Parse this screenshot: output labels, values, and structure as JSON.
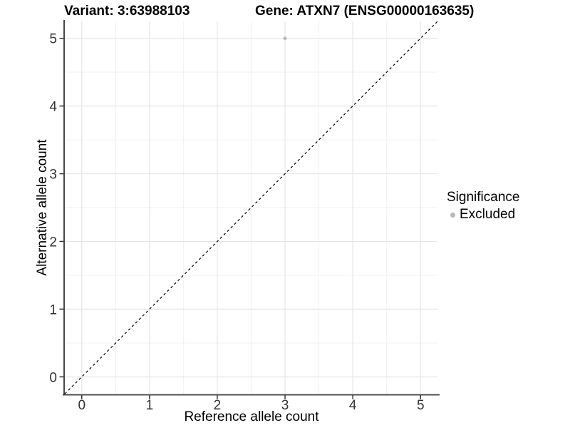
{
  "header": {
    "variant_title": "Variant: 3:63988103",
    "gene_title": "Gene: ATXN7 (ENSG00000163635)"
  },
  "chart_data": {
    "type": "scatter",
    "title": "Variant: 3:63988103 | Gene: ATXN7 (ENSG00000163635)",
    "xlabel": "Reference allele count",
    "ylabel": "Alternative allele count",
    "xlim": [
      -0.25,
      5.25
    ],
    "ylim": [
      -0.25,
      5.25
    ],
    "x_ticks": [
      0,
      1,
      2,
      3,
      4,
      5
    ],
    "y_ticks": [
      0,
      1,
      2,
      3,
      4,
      5
    ],
    "grid": "major+minor",
    "series": [
      {
        "name": "Excluded",
        "color": "#b8b8b8",
        "point_radius": 2.5,
        "points": [
          {
            "x": 3,
            "y": 5
          }
        ]
      }
    ],
    "reference_line": {
      "slope": 1,
      "intercept": 0,
      "linetype": "dashed",
      "color": "#000000"
    },
    "legend": {
      "title": "Significance",
      "position": "right",
      "items": [
        {
          "label": "Excluded",
          "color": "#b8b8b8"
        }
      ]
    },
    "colors": {
      "grid_major": "#e6e6e6",
      "grid_minor": "#f2f2f2",
      "axis_line": "#333333",
      "tick_text": "#333333"
    }
  }
}
